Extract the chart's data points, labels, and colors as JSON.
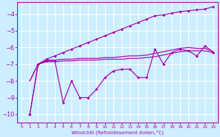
{
  "xlabel": "Windchill (Refroidissement éolien,°C)",
  "background_color": "#cceeff",
  "grid_color": "#ffffff",
  "line_color": "#aa00aa",
  "xlim": [
    -0.5,
    23.5
  ],
  "ylim": [
    -10.5,
    -3.3
  ],
  "yticks": [
    -10,
    -9,
    -8,
    -7,
    -6,
    -5,
    -4
  ],
  "xticks": [
    0,
    1,
    2,
    3,
    4,
    5,
    6,
    7,
    8,
    9,
    10,
    11,
    12,
    13,
    14,
    15,
    16,
    17,
    18,
    19,
    20,
    21,
    22,
    23
  ],
  "jagged": [
    null,
    -10.0,
    -7.0,
    -6.8,
    -6.8,
    -9.3,
    -8.0,
    -9.0,
    -9.0,
    -8.5,
    -7.8,
    -7.4,
    -7.3,
    -7.3,
    -7.8,
    -7.8,
    -6.1,
    -7.0,
    -6.3,
    -6.1,
    -6.2,
    -6.5,
    -5.9,
    -6.3
  ],
  "smooth_low": [
    null,
    -8.0,
    -7.0,
    -6.85,
    -6.85,
    -6.8,
    -6.8,
    -6.75,
    -6.75,
    -6.75,
    -6.7,
    -6.7,
    -6.7,
    -6.65,
    -6.65,
    -6.6,
    -6.55,
    -6.45,
    -6.35,
    -6.25,
    -6.2,
    -6.2,
    -6.2,
    -6.3
  ],
  "smooth_mid": [
    null,
    -8.0,
    -7.0,
    -6.75,
    -6.75,
    -6.7,
    -6.7,
    -6.65,
    -6.65,
    -6.65,
    -6.6,
    -6.6,
    -6.55,
    -6.5,
    -6.5,
    -6.45,
    -6.35,
    -6.25,
    -6.15,
    -6.05,
    -6.0,
    -6.05,
    -6.05,
    -6.25
  ],
  "rising": [
    null,
    -10.0,
    -7.0,
    -6.7,
    -6.5,
    -6.3,
    -6.1,
    -5.9,
    -5.7,
    -5.5,
    -5.3,
    -5.1,
    -4.9,
    -4.7,
    -4.5,
    -4.3,
    -4.1,
    -4.05,
    -3.95,
    -3.85,
    -3.8,
    -3.75,
    -3.7,
    -3.55
  ]
}
